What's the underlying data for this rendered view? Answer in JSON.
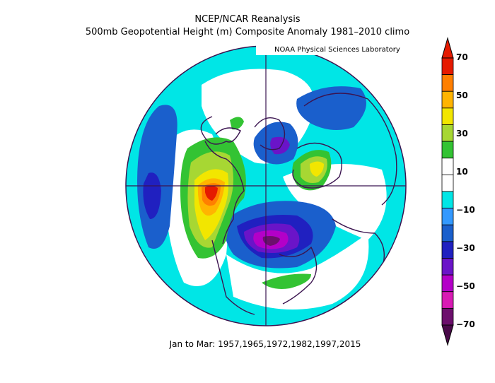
{
  "title_line1": "NCEP/NCAR Reanalysis",
  "title_line2": "500mb Geopotential Height (m) Composite Anomaly 1981–2010 climo",
  "credit": "NOAA Physical Sciences Laboratory",
  "caption": "Jan to Mar: 1957,1965,1972,1982,1997,2015",
  "colorbar": {
    "labels": [
      "70",
      "50",
      "30",
      "10",
      "−10",
      "−30",
      "−50",
      "−70"
    ],
    "colors": [
      "#e51a00",
      "#ff7f00",
      "#ffb400",
      "#f2e600",
      "#a7d733",
      "#33c333",
      "#ffffff",
      "#ffffff",
      "#00e6e6",
      "#3399ff",
      "#1a5fcc",
      "#2020c0",
      "#6a14c8",
      "#b400c8",
      "#d81ab4",
      "#6c0f6c"
    ]
  },
  "map_colors": {
    "background": "#00e6e6",
    "neutral": "#ffffff",
    "pos_10": "#33c333",
    "pos_20": "#a7d733",
    "pos_30": "#f2e600",
    "pos_40": "#ffb400",
    "pos_50": "#ff7f00",
    "pos_60": "#e51a00",
    "neg_30": "#1a5fcc",
    "neg_40": "#2020c0",
    "neg_50": "#6a14c8",
    "neg_60": "#b400c8",
    "neg_70": "#6c0f6c",
    "coastline": "#3b1450"
  }
}
